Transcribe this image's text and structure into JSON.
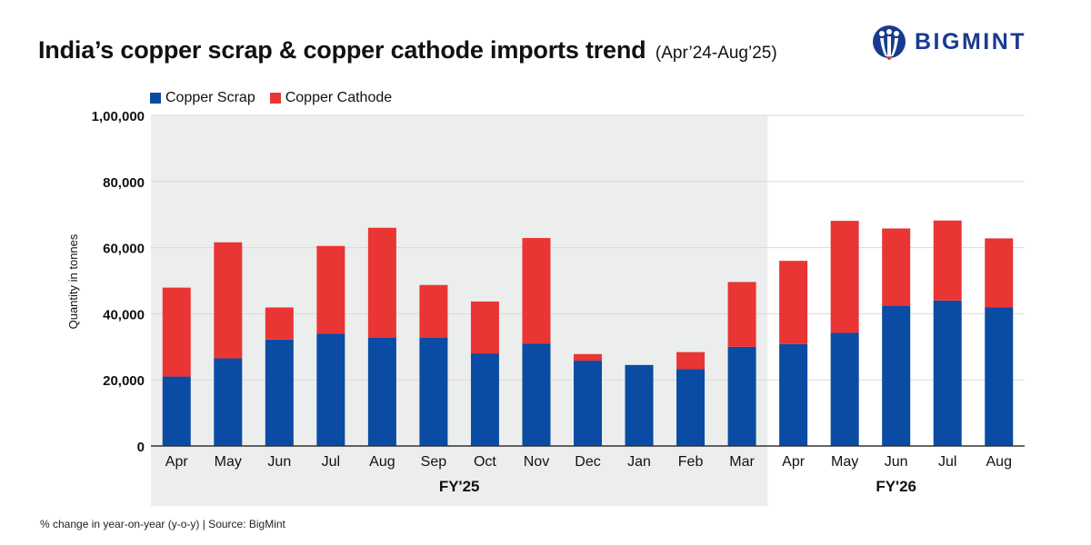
{
  "header": {
    "title": "India’s copper scrap & copper cathode imports trend",
    "subtitle": "(Apr’24-Aug’25)"
  },
  "logo": {
    "text": "BIGMINT",
    "color": "#1a3a8f"
  },
  "legend": {
    "scrap_label": "Copper Scrap",
    "cathode_label": "Copper Cathode"
  },
  "colors": {
    "scrap": "#0a4ba3",
    "cathode": "#ea3535",
    "fy25_band": "#eceeed",
    "grid": "#d9d9d9"
  },
  "footer": {
    "note": "% change in year-on-year (y-o-y)  |  Source: BigMint"
  },
  "chart_data": {
    "type": "bar",
    "stacked": true,
    "categories": [
      "Apr",
      "May",
      "Jun",
      "Jul",
      "Aug",
      "Sep",
      "Oct",
      "Nov",
      "Dec",
      "Jan",
      "Feb",
      "Mar",
      "Apr",
      "May",
      "Jun",
      "Jul",
      "Aug"
    ],
    "groups": [
      {
        "label": "FY'25",
        "from": 0,
        "to": 11
      },
      {
        "label": "FY'26",
        "from": 12,
        "to": 16
      }
    ],
    "series": [
      {
        "name": "Copper Scrap",
        "values": [
          21000,
          26500,
          32200,
          34000,
          32800,
          32800,
          28000,
          31000,
          25800,
          24500,
          23300,
          30000,
          30800,
          34200,
          42500,
          44000,
          41900
        ]
      },
      {
        "name": "Copper Cathode",
        "values": [
          26900,
          35100,
          9700,
          26500,
          33200,
          15900,
          15700,
          31900,
          2000,
          0,
          5100,
          19600,
          25200,
          33900,
          23300,
          24200,
          20900
        ]
      }
    ],
    "ylabel": "Quantity in tonnes",
    "ylim": [
      0,
      100000
    ],
    "yticks": [
      0,
      20000,
      40000,
      60000,
      80000,
      100000
    ],
    "ytick_labels": [
      "0",
      "20,000",
      "40,000",
      "60,000",
      "80,000",
      "1,00,000"
    ],
    "grid": true,
    "legend_position": "top-left"
  }
}
